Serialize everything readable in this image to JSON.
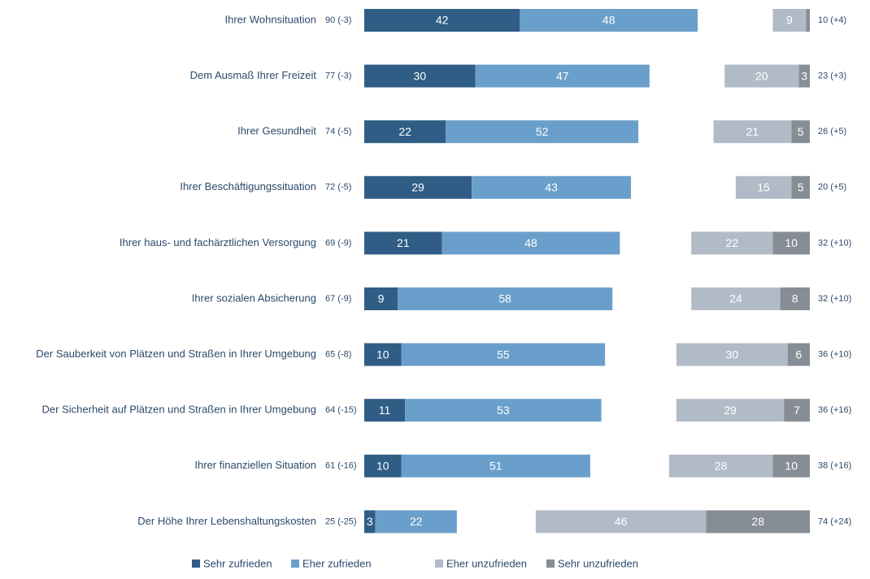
{
  "chart_data": {
    "type": "diverging_bar",
    "categories": [
      "Ihrer Wohnsituation",
      "Dem Ausmaß Ihrer Freizeit",
      "Ihrer Gesundheit",
      "Ihrer Beschäftigungssituation",
      "Ihrer haus- und fachärztlichen Versorgung",
      "Ihrer sozialen Absicherung",
      "Der Sauberkeit von Plätzen und Straßen in Ihrer Umgebung",
      "Der Sicherheit auf Plätzen und Straßen in Ihrer Umgebung",
      "Ihrer finanziellen Situation",
      "Der Höhe Ihrer Lebenshaltungskosten"
    ],
    "series": [
      {
        "name": "Sehr zufrieden",
        "color": "#2f5d86",
        "anchor": "start",
        "values": [
          42,
          30,
          22,
          29,
          21,
          9,
          10,
          11,
          10,
          3
        ]
      },
      {
        "name": "Eher zufrieden",
        "color": "#6b9fcb",
        "anchor": "start",
        "values": [
          48,
          47,
          52,
          43,
          48,
          58,
          55,
          53,
          51,
          22
        ]
      },
      {
        "name": "Eher unzufrieden",
        "color": "#b1bbc7",
        "anchor": "end",
        "values": [
          9,
          20,
          21,
          15,
          22,
          24,
          30,
          29,
          28,
          46
        ]
      },
      {
        "name": "Sehr unzufrieden",
        "color": "#878d95",
        "anchor": "end",
        "values": [
          1,
          3,
          5,
          5,
          10,
          8,
          6,
          7,
          10,
          28
        ]
      }
    ],
    "left_annotations": [
      "90 (-3)",
      "77 (-3)",
      "74 (-5)",
      "72 (-5)",
      "69 (-9)",
      "67 (-9)",
      "65 (-8)",
      "64 (-15)",
      "61 (-16)",
      "25 (-25)"
    ],
    "right_annotations": [
      "10 (+4)",
      "23 (+3)",
      "26 (+5)",
      "20 (+5)",
      "32 (+10)",
      "32 (+10)",
      "36 (+10)",
      "36 (+16)",
      "38 (+16)",
      "74 (+24)"
    ]
  }
}
